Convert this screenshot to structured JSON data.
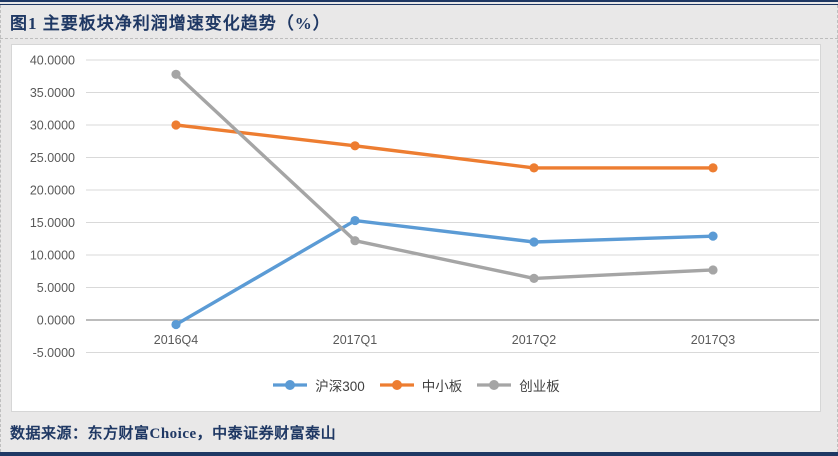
{
  "header": {
    "title": "图1 主要板块净利润增速变化趋势（%）"
  },
  "chart_data": {
    "type": "line",
    "title": "主要板块净利润增速变化趋势（%）",
    "categories": [
      "2016Q4",
      "2017Q1",
      "2017Q2",
      "2017Q3"
    ],
    "series": [
      {
        "name": "沪深300",
        "color": "#5B9BD5",
        "values": [
          -0.7,
          15.3,
          12.0,
          12.9
        ]
      },
      {
        "name": "中小板",
        "color": "#ED7D31",
        "values": [
          30.0,
          26.8,
          23.4,
          23.4
        ]
      },
      {
        "name": "创业板",
        "color": "#A5A5A5",
        "values": [
          37.8,
          12.2,
          6.4,
          7.7
        ]
      }
    ],
    "ylim": [
      -5,
      40
    ],
    "ytick_step": 5,
    "ytick_decimals": 4,
    "ytick_labels": [
      "40.0000",
      "35.0000",
      "30.0000",
      "25.0000",
      "20.0000",
      "15.0000",
      "10.0000",
      "5.0000",
      "0.0000",
      "-5.0000"
    ],
    "xlabel": "",
    "ylabel": "",
    "grid": true,
    "legend_position": "bottom"
  },
  "footer": {
    "source": "数据来源：东方财富Choice，中泰证券财富泰山"
  },
  "colors": {
    "accent_navy": "#1F3864",
    "gridline": "#D9D9D9",
    "axis_line": "#A6A6A6",
    "tick_text": "#595959",
    "card_bg": "#FFFFFF",
    "page_bg": "#E9E8E8"
  }
}
